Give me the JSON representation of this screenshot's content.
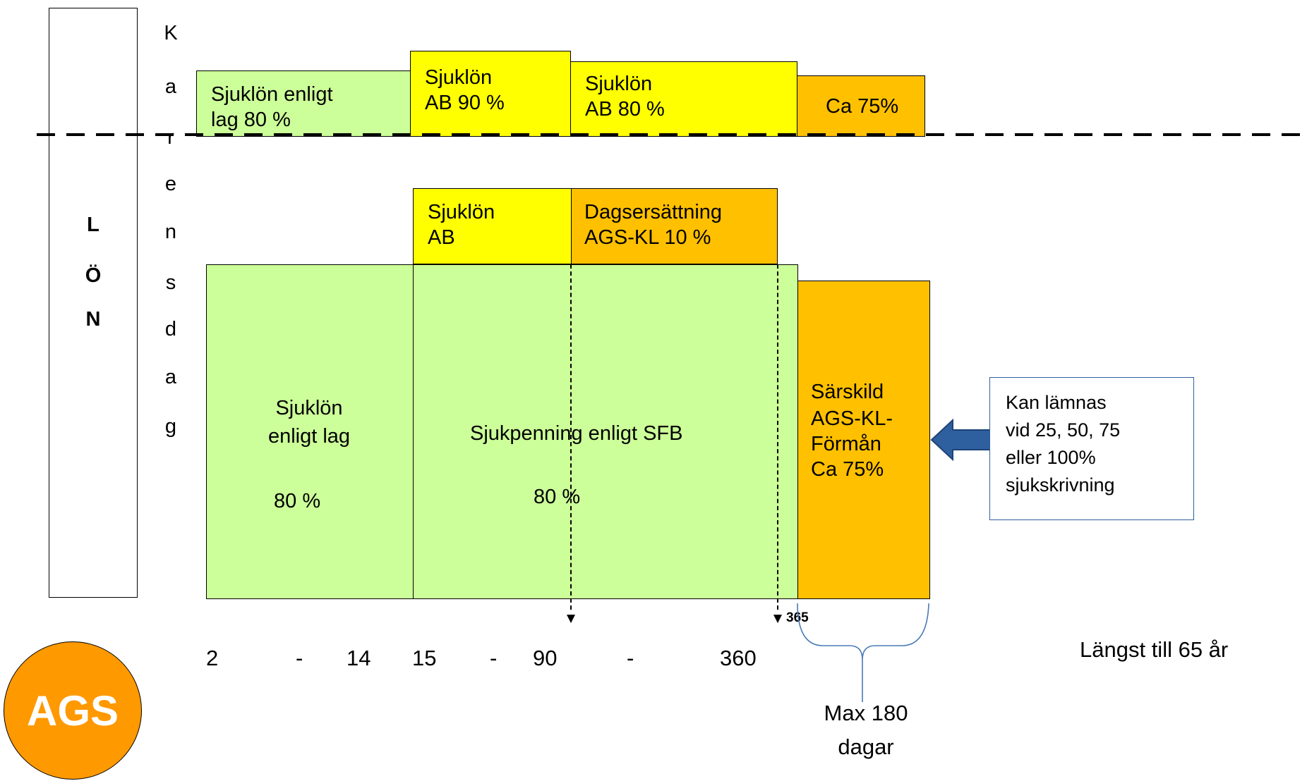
{
  "lon_label": [
    "L",
    "Ö",
    "N"
  ],
  "karensdag_letters": [
    "K",
    "a",
    "r",
    "e",
    "n",
    "s",
    "d",
    "a",
    "g"
  ],
  "top_row": {
    "box1": [
      "Sjuklön enligt",
      "lag 80 %"
    ],
    "box2": [
      "Sjuklön",
      "AB 90 %"
    ],
    "box3": [
      "Sjuklön",
      "AB 80 %"
    ],
    "box4": "Ca 75%"
  },
  "mid_row": {
    "box1": [
      "Sjuklön",
      "AB"
    ],
    "box2": [
      "Dagsersättning",
      "AGS-KL 10 %"
    ]
  },
  "main": {
    "box1": [
      "Sjuklön",
      "enligt lag"
    ],
    "box1_pct": "80 %",
    "box2": "Sjukpenning enligt SFB",
    "box2_pct": "80 %",
    "box3": [
      "Särskild",
      "AGS-KL-",
      "Förmån",
      "Ca 75%"
    ]
  },
  "note": [
    "Kan lämnas",
    "vid 25, 50, 75",
    "eller 100%",
    "sjukskrivning"
  ],
  "marker_365": "365",
  "timeline": {
    "a": "2",
    "dash1": "-",
    "b": "14",
    "c": "15",
    "dash2": "-",
    "d": "90",
    "dash3": "-",
    "e": "360"
  },
  "max_label": [
    "Max 180",
    "dagar"
  ],
  "longest": "Längst till 65 år",
  "logo": "AGS",
  "colors": {
    "green": "#ccff99",
    "yellow": "#ffff00",
    "orange": "#ffc000",
    "logo": "#ff9900",
    "arrow": "#2e5f9e"
  }
}
